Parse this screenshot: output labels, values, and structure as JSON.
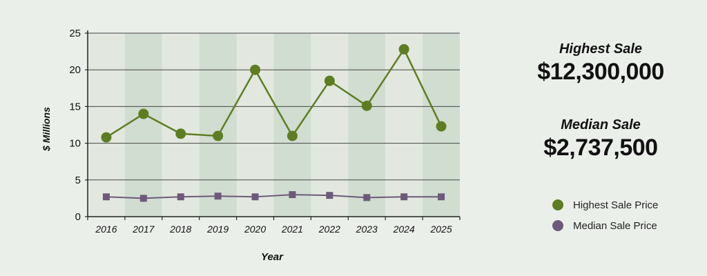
{
  "chart_data": {
    "type": "line",
    "title": "",
    "xlabel": "Year",
    "ylabel": "$ Millions",
    "categories": [
      "2016",
      "2017",
      "2018",
      "2019",
      "2020",
      "2021",
      "2022",
      "2023",
      "2024",
      "2025"
    ],
    "ylim": [
      0,
      25
    ],
    "yticks": [
      0,
      5,
      10,
      15,
      20,
      25
    ],
    "grid": true,
    "legend_position": "right",
    "series": [
      {
        "name": "Highest Sale Price",
        "color": "#5e7d22",
        "marker": "circle",
        "values": [
          10.8,
          14.0,
          11.3,
          11.0,
          20.0,
          11.0,
          18.5,
          15.1,
          22.8,
          12.3
        ]
      },
      {
        "name": "Median Sale Price",
        "color": "#6c5a7a",
        "marker": "square",
        "values": [
          2.7,
          2.5,
          2.7,
          2.8,
          2.7,
          3.0,
          2.9,
          2.6,
          2.7,
          2.7
        ]
      }
    ]
  },
  "stats": {
    "highest_label": "Highest Sale",
    "highest_value": "$12,300,000",
    "median_label": "Median Sale",
    "median_value": "$2,737,500"
  },
  "colors": {
    "background": "#ebefea",
    "band_light": "#e2e8df",
    "band_dark": "#d1ddd0",
    "gridline": "#444444"
  }
}
